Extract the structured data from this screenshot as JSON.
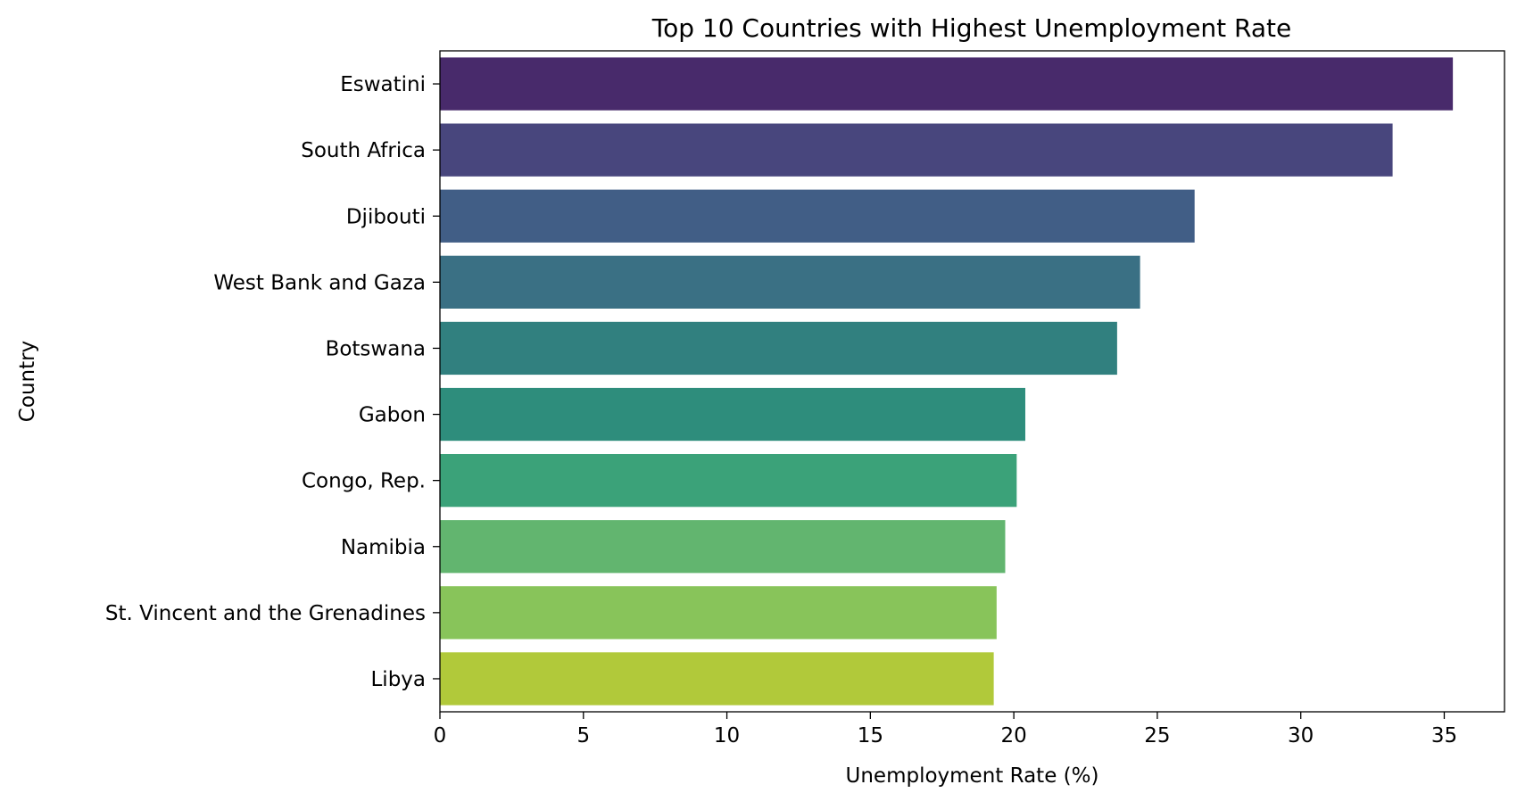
{
  "chart_data": {
    "type": "bar",
    "orientation": "horizontal",
    "title": "Top 10 Countries with Highest Unemployment Rate",
    "xlabel": "Unemployment Rate (%)",
    "ylabel": "Country",
    "categories": [
      "Eswatini",
      "South Africa",
      "Djibouti",
      "West Bank and Gaza",
      "Botswana",
      "Gabon",
      "Congo, Rep.",
      "Namibia",
      "St. Vincent and the Grenadines",
      "Libya"
    ],
    "values": [
      35.3,
      33.2,
      26.3,
      24.4,
      23.6,
      20.4,
      20.1,
      19.7,
      19.4,
      19.3
    ],
    "colors": [
      "#482a6b",
      "#48467d",
      "#415e86",
      "#3a7084",
      "#31807f",
      "#2e8d7c",
      "#3ba279",
      "#62b56f",
      "#88c45a",
      "#b1c93a"
    ],
    "xlim": [
      0,
      37.1
    ],
    "xticks": [
      0,
      5,
      10,
      15,
      20,
      25,
      30,
      35
    ],
    "grid": false,
    "legend": "none"
  }
}
